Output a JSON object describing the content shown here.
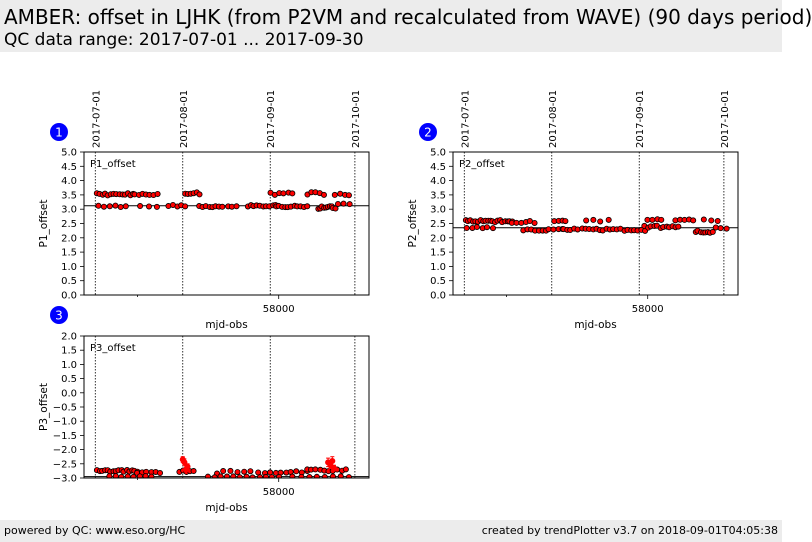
{
  "header": {
    "title": "AMBER: offset in LJHK (from P2VM and recalculated from WAVE) (90 days period)",
    "subtitle": "QC data range: 2017-07-01 ... 2017-09-30"
  },
  "footer": {
    "left": "powered by QC: www.eso.org/HC",
    "right": "created by trendPlotter v3.7 on 2018-09-01T04:05:38"
  },
  "colors": {
    "marker_fill": "#ff0000",
    "marker_edge": "#000000",
    "badge": "#0000ff",
    "reference_line": "#000000"
  },
  "chart_data": [
    {
      "id": "1",
      "type": "scatter",
      "legend": "P1_offset",
      "ylabel": "P1_offset",
      "xlabel": "mjd-obs",
      "xlim": [
        57931.0,
        58032.0
      ],
      "ylim": [
        0.0,
        5.0
      ],
      "yticks": [
        "0.0",
        "0.5",
        "1.0",
        "1.5",
        "2.0",
        "2.5",
        "3.0",
        "3.5",
        "4.0",
        "4.5",
        "5.0"
      ],
      "xtick_labels": [
        {
          "x": 58000,
          "label": "58000"
        }
      ],
      "minor_xticks": [
        57950
      ],
      "date_markers": [
        {
          "x": 57935,
          "label": "2017-07-01"
        },
        {
          "x": 57966,
          "label": "2017-08-01"
        },
        {
          "x": 57997,
          "label": "2017-09-01"
        },
        {
          "x": 58027,
          "label": "2017-10-01"
        }
      ],
      "reference_line": 3.12,
      "clusters": [
        {
          "x0": 57935.5,
          "x1": 57948.5,
          "y": 3.52,
          "n": 14,
          "jitter": 0.04
        },
        {
          "x0": 57949,
          "x1": 57957,
          "y": 3.52,
          "n": 7,
          "jitter": 0.03
        },
        {
          "x0": 57967,
          "x1": 57972,
          "y": 3.55,
          "n": 6,
          "jitter": 0.04
        },
        {
          "x0": 57997,
          "x1": 58005,
          "y": 3.55,
          "n": 6,
          "jitter": 0.05
        },
        {
          "x0": 58010,
          "x1": 58016,
          "y": 3.55,
          "n": 5,
          "jitter": 0.05
        },
        {
          "x0": 58020,
          "x1": 58025,
          "y": 3.5,
          "n": 4,
          "jitter": 0.05
        },
        {
          "x0": 57936,
          "x1": 57946,
          "y": 3.1,
          "n": 6,
          "jitter": 0.03
        },
        {
          "x0": 57951,
          "x1": 57957,
          "y": 3.1,
          "n": 3,
          "jitter": 0.02
        },
        {
          "x0": 57961,
          "x1": 57967,
          "y": 3.12,
          "n": 5,
          "jitter": 0.03
        },
        {
          "x0": 57972,
          "x1": 57980,
          "y": 3.1,
          "n": 8,
          "jitter": 0.03
        },
        {
          "x0": 57982,
          "x1": 57985,
          "y": 3.1,
          "n": 3,
          "jitter": 0.02
        },
        {
          "x0": 57989,
          "x1": 57999,
          "y": 3.12,
          "n": 10,
          "jitter": 0.03
        },
        {
          "x0": 57999,
          "x1": 58010,
          "y": 3.1,
          "n": 11,
          "jitter": 0.03
        },
        {
          "x0": 58014,
          "x1": 58020,
          "y": 3.05,
          "n": 10,
          "jitter": 0.06
        },
        {
          "x0": 58021,
          "x1": 58025,
          "y": 3.15,
          "n": 3,
          "jitter": 0.05
        }
      ]
    },
    {
      "id": "2",
      "type": "scatter",
      "legend": "P2_offset",
      "ylabel": "P2_offset",
      "xlabel": "mjd-obs",
      "xlim": [
        57931.0,
        58032.0
      ],
      "ylim": [
        0.0,
        5.0
      ],
      "yticks": [
        "0.0",
        "0.5",
        "1.0",
        "1.5",
        "2.0",
        "2.5",
        "3.0",
        "3.5",
        "4.0",
        "4.5",
        "5.0"
      ],
      "xtick_labels": [
        {
          "x": 58000,
          "label": "58000"
        }
      ],
      "minor_xticks": [
        57950
      ],
      "date_markers": [
        {
          "x": 57935,
          "label": "2017-07-01"
        },
        {
          "x": 57966,
          "label": "2017-08-01"
        },
        {
          "x": 57997,
          "label": "2017-09-01"
        },
        {
          "x": 58027,
          "label": "2017-10-01"
        }
      ],
      "reference_line": 2.35,
      "clusters": [
        {
          "x0": 57935.5,
          "x1": 57952,
          "y": 2.58,
          "n": 20,
          "jitter": 0.04
        },
        {
          "x0": 57952,
          "x1": 57960,
          "y": 2.55,
          "n": 6,
          "jitter": 0.05
        },
        {
          "x0": 57967,
          "x1": 57971,
          "y": 2.6,
          "n": 4,
          "jitter": 0.04
        },
        {
          "x0": 57978,
          "x1": 57986,
          "y": 2.6,
          "n": 4,
          "jitter": 0.05
        },
        {
          "x0": 58000,
          "x1": 58005,
          "y": 2.62,
          "n": 4,
          "jitter": 0.04
        },
        {
          "x0": 58010,
          "x1": 58016,
          "y": 2.62,
          "n": 5,
          "jitter": 0.03
        },
        {
          "x0": 58020,
          "x1": 58025,
          "y": 2.6,
          "n": 3,
          "jitter": 0.04
        },
        {
          "x0": 57936,
          "x1": 57945,
          "y": 2.35,
          "n": 6,
          "jitter": 0.03
        },
        {
          "x0": 57956,
          "x1": 57964,
          "y": 2.27,
          "n": 7,
          "jitter": 0.03
        },
        {
          "x0": 57965,
          "x1": 57970,
          "y": 2.3,
          "n": 4,
          "jitter": 0.02
        },
        {
          "x0": 57970,
          "x1": 57982,
          "y": 2.3,
          "n": 10,
          "jitter": 0.03
        },
        {
          "x0": 57983,
          "x1": 57999,
          "y": 2.28,
          "n": 14,
          "jitter": 0.04
        },
        {
          "x0": 57999,
          "x1": 58011,
          "y": 2.38,
          "n": 12,
          "jitter": 0.05
        },
        {
          "x0": 58017,
          "x1": 58023,
          "y": 2.22,
          "n": 8,
          "jitter": 0.05
        },
        {
          "x0": 58024,
          "x1": 58028,
          "y": 2.35,
          "n": 3,
          "jitter": 0.04
        }
      ]
    },
    {
      "id": "3",
      "type": "scatter",
      "legend": "P3_offset",
      "ylabel": "P3_offset",
      "xlabel": "mjd-obs",
      "xlim": [
        57931.0,
        58032.0
      ],
      "ylim": [
        -3.0,
        2.0
      ],
      "yticks": [
        "−3.0",
        "−2.5",
        "−2.0",
        "−1.5",
        "−1.0",
        "−0.5",
        "0.0",
        "0.5",
        "1.0",
        "1.5",
        "2.0"
      ],
      "xtick_labels": [
        {
          "x": 58000,
          "label": "58000"
        }
      ],
      "minor_xticks": [
        57950
      ],
      "date_markers": [
        {
          "x": 57935,
          "label": "2017-07-01"
        },
        {
          "x": 57966,
          "label": "2017-08-01"
        },
        {
          "x": 57997,
          "label": "2017-09-01"
        },
        {
          "x": 58027,
          "label": "2017-10-01"
        }
      ],
      "reference_line": -2.95,
      "clusters": [
        {
          "x0": 57935.5,
          "x1": 57950,
          "y": -2.75,
          "n": 16,
          "jitter": 0.03
        },
        {
          "x0": 57950,
          "x1": 57958,
          "y": -2.8,
          "n": 6,
          "jitter": 0.03
        },
        {
          "x0": 57965,
          "x1": 57970,
          "y": -2.75,
          "n": 5,
          "jitter": 0.05
        },
        {
          "x0": 57978,
          "x1": 57995,
          "y": -2.8,
          "n": 8,
          "jitter": 0.05
        },
        {
          "x0": 57997,
          "x1": 58010,
          "y": -2.78,
          "n": 8,
          "jitter": 0.05
        },
        {
          "x0": 58010,
          "x1": 58024,
          "y": -2.72,
          "n": 10,
          "jitter": 0.05
        },
        {
          "x0": 57940,
          "x1": 57955,
          "y": -2.95,
          "n": 8,
          "jitter": 0.02
        },
        {
          "x0": 57975,
          "x1": 58000,
          "y": -2.96,
          "n": 12,
          "jitter": 0.02
        },
        {
          "x0": 58005,
          "x1": 58025,
          "y": -2.95,
          "n": 8,
          "jitter": 0.02
        }
      ],
      "error_points": [
        {
          "x": 57966.0,
          "y": -2.35,
          "err": 0.1
        },
        {
          "x": 57966.6,
          "y": -2.45,
          "err": 0.12
        },
        {
          "x": 57967.2,
          "y": -2.7,
          "err": 0.08
        },
        {
          "x": 57967.7,
          "y": -2.6,
          "err": 0.1
        },
        {
          "x": 58017.5,
          "y": -2.45,
          "err": 0.15
        },
        {
          "x": 58018.3,
          "y": -2.55,
          "err": 0.12
        },
        {
          "x": 58019.0,
          "y": -2.4,
          "err": 0.15
        },
        {
          "x": 58019.6,
          "y": -2.65,
          "err": 0.1
        }
      ]
    }
  ]
}
